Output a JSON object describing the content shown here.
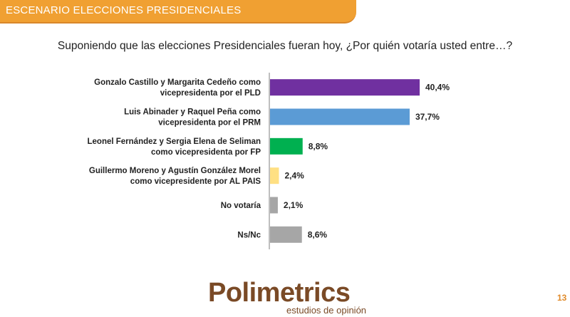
{
  "header": {
    "banner_title": "ESCENARIO ELECCIONES PRESIDENCIALES"
  },
  "question": "Suponiendo que las elecciones Presidenciales fueran hoy, ¿Por quién votaría usted entre…?",
  "chart_data": {
    "type": "bar",
    "orientation": "horizontal",
    "categories": [
      [
        "Gonzalo Castillo y Margarita Cedeño como",
        "vicepresidenta por el PLD"
      ],
      [
        "Luis Abinader y Raquel Peña como",
        "vicepresidenta por el PRM"
      ],
      [
        "Leonel Fernández y Sergia Elena de Seliman",
        "como vicepresidenta por FP"
      ],
      [
        "Guillermo Moreno y Agustín González Morel",
        "como vicepresidente por AL PAIS"
      ],
      [
        "No votaría"
      ],
      [
        "Ns/Nc"
      ]
    ],
    "values": [
      40.4,
      37.7,
      8.8,
      2.4,
      2.1,
      8.6
    ],
    "value_labels": [
      "40,4%",
      "37,7%",
      "8,8%",
      "2,4%",
      "2,1%",
      "8,6%"
    ],
    "colors": [
      "#7030a0",
      "#5b9bd5",
      "#00b050",
      "#ffe083",
      "#a6a6a6",
      "#a6a6a6"
    ],
    "xlim": [
      0,
      40.4
    ],
    "grid": false
  },
  "logo": {
    "brand": "Polimetrics",
    "tagline": "estudios de opinión"
  },
  "page_number": "13"
}
